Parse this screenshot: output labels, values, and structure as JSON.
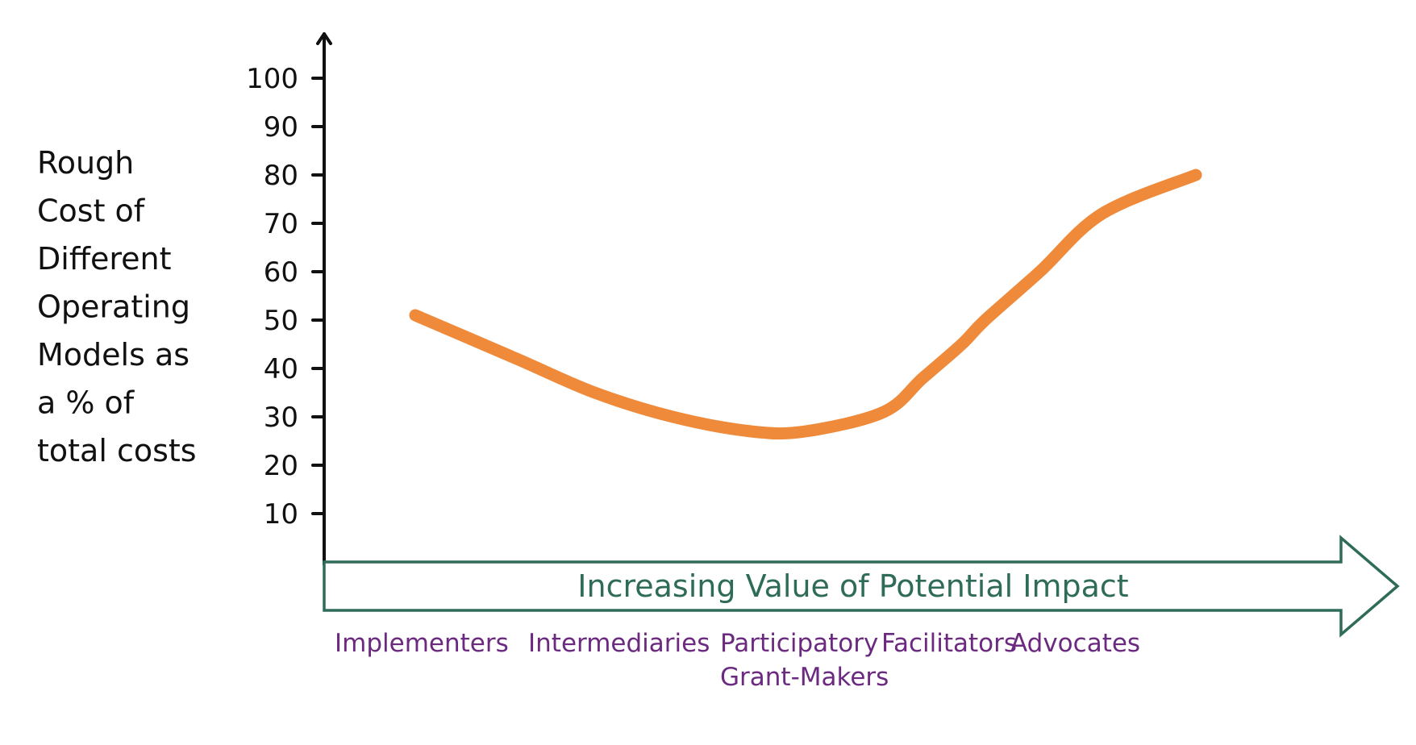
{
  "chart_data": {
    "type": "line",
    "title": "",
    "xlabel": "Increasing Value of Potential Impact",
    "ylabel": "Rough Cost of Different Operating Models as a % of total costs",
    "ylabel_lines": [
      "Rough",
      "Cost of",
      "Different",
      "Operating",
      "Models as",
      "a % of",
      "total costs"
    ],
    "yticks": [
      10,
      20,
      30,
      40,
      50,
      60,
      70,
      80,
      90,
      100
    ],
    "ylim": [
      0,
      100
    ],
    "grid": false,
    "legend": null,
    "categories": [
      "Implementers",
      "Intermediaries",
      "Participatory Grant-Makers",
      "Facilitators",
      "Advocates"
    ],
    "category_lines": [
      [
        "Implementers"
      ],
      [
        "Intermediaries"
      ],
      [
        "Participatory",
        "Grant-Makers"
      ],
      [
        "Facilitators"
      ],
      [
        "Advocates"
      ]
    ],
    "series": [
      {
        "name": "Rough cost",
        "color": "#ee8a3a",
        "x": [
          0.0,
          0.13,
          0.23,
          0.33,
          0.43,
          0.5,
          0.6,
          0.65,
          0.7,
          0.73,
          0.8,
          0.88,
          1.0
        ],
        "values": [
          51,
          42,
          35,
          30,
          27,
          27,
          31,
          38,
          45,
          50,
          60,
          72,
          80
        ]
      }
    ],
    "annotations": []
  },
  "colors": {
    "axis": "#111111",
    "curve": "#ee8a3a",
    "arrow": "#2e6b58",
    "categories": "#6b2a80"
  }
}
